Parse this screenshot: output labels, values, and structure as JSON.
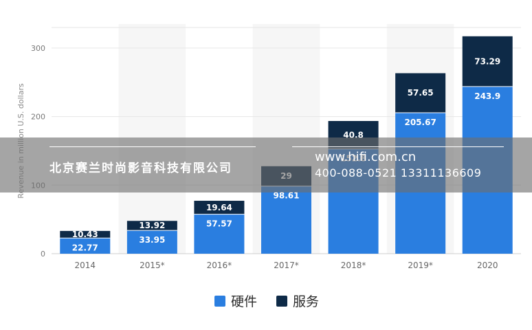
{
  "chart_data": {
    "type": "bar",
    "stacked": true,
    "ylabel": "Revenue in million U.S. dollars",
    "ylim": [
      0,
      330
    ],
    "yticks": [
      0,
      100,
      200,
      300
    ],
    "grid": "horizontal",
    "categories": [
      "2014",
      "2015*",
      "2016*",
      "2017*",
      "2018*",
      "2019*",
      "2020"
    ],
    "series": [
      {
        "name": "硬件",
        "color": "#2a7ee0",
        "values": [
          22.77,
          33.95,
          57.57,
          98.61,
          152.8,
          205.67,
          243.9
        ]
      },
      {
        "name": "服务",
        "color": "#0e2a47",
        "values": [
          10.43,
          13.92,
          19.64,
          29,
          40.8,
          57.65,
          73.29
        ]
      }
    ],
    "labels": {
      "series0": [
        "22.77",
        "33.95",
        "57.57",
        "98.61",
        "152.8",
        "205.67",
        "243.9"
      ],
      "series1": [
        "10.43",
        "13.92",
        "19.64",
        "29",
        "40.8",
        "57.65",
        "73.29"
      ]
    },
    "legend_position": "bottom-center"
  },
  "watermark": {
    "company": "北京赛兰时尚影音科技有限公司",
    "website": "www.hifi.com.cn",
    "phone": "400-088-0521 13311136609"
  }
}
